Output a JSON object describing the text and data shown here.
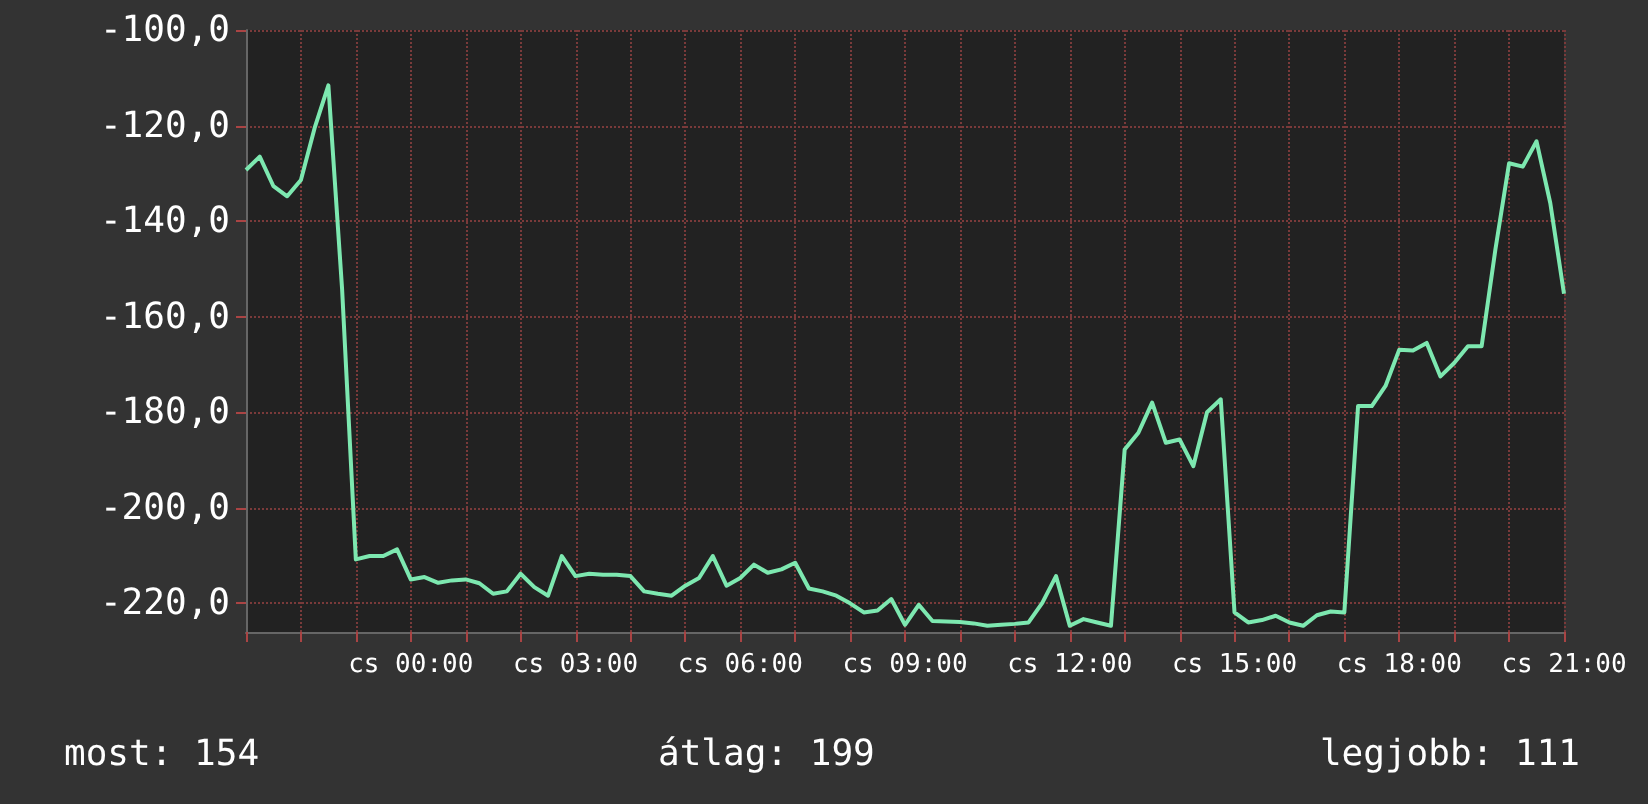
{
  "chart_data": {
    "type": "line",
    "color": "#7de8b0",
    "grid": true,
    "marker": "none",
    "categories": [
      null,
      null,
      null,
      null,
      null,
      null,
      null,
      null,
      null,
      null,
      null,
      null,
      "cs 00:00",
      null,
      null,
      null,
      null,
      null,
      null,
      null,
      null,
      null,
      null,
      null,
      "cs 03:00",
      null,
      null,
      null,
      null,
      null,
      null,
      null,
      null,
      null,
      null,
      null,
      "cs 06:00",
      null,
      null,
      null,
      null,
      null,
      null,
      null,
      null,
      null,
      null,
      null,
      "cs 09:00",
      null,
      null,
      null,
      null,
      null,
      null,
      null,
      null,
      null,
      null,
      null,
      "cs 12:00",
      null,
      null,
      null,
      null,
      null,
      null,
      null,
      null,
      null,
      null,
      null,
      "cs 15:00",
      null,
      null,
      null,
      null,
      null,
      null,
      null,
      null,
      null,
      null,
      null,
      "cs 18:00",
      null,
      null,
      null,
      null,
      null,
      null,
      null,
      null,
      null,
      null,
      null,
      "cs 21:00"
    ],
    "ylim": [
      -226,
      -100
    ],
    "yticks": [
      {
        "value": -220,
        "label": "-220,0"
      },
      {
        "value": -200,
        "label": "-200,0"
      },
      {
        "value": -180,
        "label": "-180,0"
      },
      {
        "value": -160,
        "label": "-160,0"
      },
      {
        "value": -140,
        "label": "-140,0"
      },
      {
        "value": -120,
        "label": "-120,0"
      },
      {
        "value": -100,
        "label": "-100,0"
      }
    ],
    "values": [
      -129.3,
      -126.5,
      -132.7,
      -134.8,
      -131.4,
      -120.5,
      -111.6,
      -154.3,
      -210.8,
      -210.1,
      -210.1,
      -208.7,
      -215.0,
      -214.5,
      -215.7,
      -215.2,
      -215.0,
      -215.8,
      -218.0,
      -217.5,
      -213.8,
      -216.6,
      -218.4,
      -210.1,
      -214.3,
      -213.8,
      -214.0,
      -214.0,
      -214.3,
      -217.5,
      -218.0,
      -218.4,
      -216.3,
      -214.7,
      -210.1,
      -216.3,
      -214.7,
      -211.9,
      -213.6,
      -212.9,
      -211.5,
      -216.9,
      -217.5,
      -218.4,
      -220.0,
      -221.9,
      -221.5,
      -219.1,
      -224.5,
      -220.3,
      -223.7,
      -223.8,
      -223.9,
      -224.2,
      -224.7,
      -224.5,
      -224.3,
      -224.0,
      -219.9,
      -214.3,
      -224.7,
      -223.3,
      -224.0,
      -224.7,
      -187.8,
      -184.3,
      -178.0,
      -186.4,
      -185.7,
      -191.3,
      -180.0,
      -177.3,
      -221.9,
      -224.0,
      -223.5,
      -222.6,
      -224.0,
      -224.7,
      -222.5,
      -221.7,
      -221.9,
      -178.7,
      -178.7,
      -174.5,
      -166.9,
      -167.1,
      -165.5,
      -172.5,
      -169.7,
      -166.2,
      -166.2,
      -146.0,
      -127.9,
      -128.6,
      -123.3,
      -136.2,
      -155.2
    ],
    "annotations": [
      "most: 154",
      "átlag: 199",
      "legjobb: 111"
    ]
  }
}
